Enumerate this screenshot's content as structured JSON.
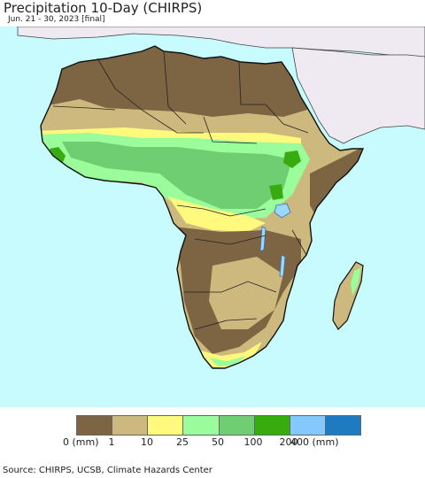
{
  "title": "Precipitation 10-Day (CHIRPS)",
  "subtitle": "Jun. 21 - 30, 2023 [final]",
  "source": "Source: CHIRPS, UCSB, Climate Hazards Center",
  "colors": {
    "ocean": "#c8fbfd",
    "land_outside": "#efeaf1",
    "lake": "#9ad9ff",
    "class_0_1": "#7d6443",
    "class_1_10": "#cdb97e",
    "class_10_25": "#fffa7d",
    "class_25_50": "#9afc9b",
    "class_50_100": "#6fcd72",
    "class_100_200": "#38ab10",
    "class_200_400": "#84c9fd",
    "class_400_plus": "#1f7bbf"
  },
  "legend": {
    "classes": [
      {
        "range": "0-1",
        "color": "#7d6443"
      },
      {
        "range": "1-10",
        "color": "#cdb97e"
      },
      {
        "range": "10-25",
        "color": "#fffa7d"
      },
      {
        "range": "25-50",
        "color": "#9afc9b"
      },
      {
        "range": "50-100",
        "color": "#6fcd72"
      },
      {
        "range": "100-200",
        "color": "#38ab10"
      },
      {
        "range": "200-400",
        "color": "#84c9fd"
      },
      {
        "range": "400+",
        "color": "#1f7bbf"
      }
    ],
    "tick_labels": [
      "0 (mm)",
      "1",
      "10",
      "25",
      "50",
      "100",
      "200",
      "400 (mm)"
    ]
  }
}
